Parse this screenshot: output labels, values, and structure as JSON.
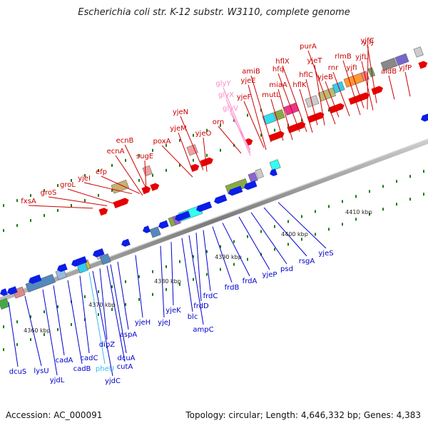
{
  "title": "Escherichia coli str. K-12 substr. W3110, complete genome",
  "accession": "Accession: AC_000091",
  "summary": "Topology: circular; Length: 4,646,332 bp; Genes: 4,383",
  "colors": {
    "forward_arrow": "#e60000",
    "reverse_arrow": "#0a1ee6",
    "forward_label": "#cc0000",
    "reverse_label": "#0000cc",
    "rna_label": "#ff88cc",
    "trna_label": "#33bbee",
    "backbone": "#8a8a8a",
    "tick": "#1a7a1a"
  },
  "ruler_labels": [
    "4360 kbp",
    "4370 kbp",
    "4380 kbp",
    "4390 kbp",
    "4400 kbp",
    "4410 kbp"
  ],
  "forward_genes": [
    "fxsA",
    "groS",
    "groL",
    "yjeI",
    "efp",
    "ecnA",
    "ecnB",
    "sugE",
    "poxA",
    "yjeM",
    "yjeN",
    "yjeO",
    "orn",
    "glyY",
    "glyX",
    "glyV",
    "yjeF",
    "yjeE",
    "amiB",
    "mutL",
    "miaA",
    "hfq",
    "hflX",
    "hflK",
    "hflC",
    "yjeT",
    "purA",
    "yjeB",
    "rnr",
    "rlmB",
    "yjfI",
    "yjfJ",
    "yjfL",
    "yjfC",
    "aidB",
    "yjfP"
  ],
  "reverse_genes": [
    "dcuS",
    "lysU",
    "yjdL",
    "cadA",
    "cadB",
    "cadC",
    "pheU",
    "yjdC",
    "dipZ",
    "cutA",
    "dcuA",
    "aspA",
    "yjeH",
    "yjeJ",
    "yjeK",
    "blc",
    "ampC",
    "frdD",
    "frdC",
    "frdB",
    "frdA",
    "yjeP",
    "psd",
    "rsgA",
    "yjeS"
  ]
}
